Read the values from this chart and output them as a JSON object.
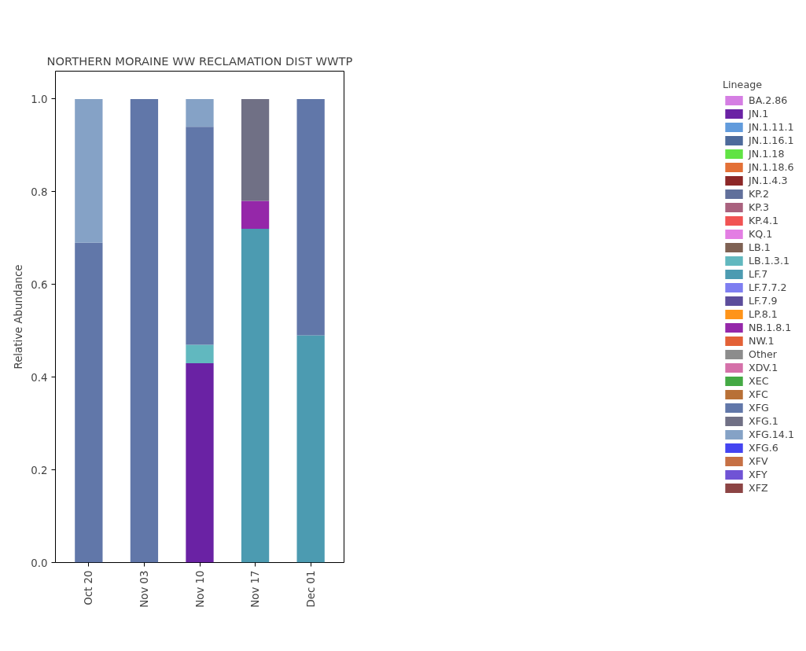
{
  "chart_data": {
    "type": "bar",
    "stacked": true,
    "title": "NORTHERN MORAINE WW RECLAMATION DIST WWTP",
    "ylabel": "Relative Abundance",
    "legend_title": "Lineage",
    "legend": "right",
    "grid": false,
    "categories": [
      "Oct 20",
      "Nov 03",
      "Nov 10",
      "Nov 17",
      "Dec 01"
    ],
    "ylim": [
      0,
      1.06
    ],
    "yticks": [
      {
        "value": 0,
        "label": "0.0"
      },
      {
        "value": 0.2,
        "label": "0.2"
      },
      {
        "value": 0.4,
        "label": "0.4"
      },
      {
        "value": 0.6,
        "label": "0.6"
      },
      {
        "value": 0.8,
        "label": "0.8"
      },
      {
        "value": 1.0,
        "label": "1.0"
      }
    ],
    "series": [
      {
        "name": "BA.2.86",
        "color": "#d070e0",
        "values": [
          0,
          0,
          0,
          0,
          0
        ]
      },
      {
        "name": "JN.1",
        "color": "#5a0a9a",
        "values": [
          0,
          0,
          0.43,
          0,
          0
        ]
      },
      {
        "name": "JN.1.11.1",
        "color": "#5090d8",
        "values": [
          0,
          0,
          0,
          0,
          0
        ]
      },
      {
        "name": "JN.1.16.1",
        "color": "#3a5a90",
        "values": [
          0,
          0,
          0,
          0,
          0
        ]
      },
      {
        "name": "JN.1.18",
        "color": "#50e030",
        "values": [
          0,
          0,
          0,
          0,
          0
        ]
      },
      {
        "name": "JN.1.18.6",
        "color": "#e06020",
        "values": [
          0,
          0,
          0,
          0,
          0
        ]
      },
      {
        "name": "JN.1.4.3",
        "color": "#801010",
        "values": [
          0,
          0,
          0,
          0,
          0
        ]
      },
      {
        "name": "KP.2",
        "color": "#506090",
        "values": [
          0,
          0,
          0,
          0,
          0
        ]
      },
      {
        "name": "KP.3",
        "color": "#a05070",
        "values": [
          0,
          0,
          0,
          0,
          0
        ]
      },
      {
        "name": "KP.4.1",
        "color": "#f04040",
        "values": [
          0,
          0,
          0,
          0,
          0
        ]
      },
      {
        "name": "KQ.1",
        "color": "#e070e0",
        "values": [
          0,
          0,
          0,
          0,
          0
        ]
      },
      {
        "name": "LB.1",
        "color": "#705040",
        "values": [
          0,
          0,
          0,
          0,
          0
        ]
      },
      {
        "name": "LB.1.3.1",
        "color": "#50b0b8",
        "values": [
          0,
          0,
          0.04,
          0,
          0
        ]
      },
      {
        "name": "LF.7",
        "color": "#3890a8",
        "values": [
          0,
          0,
          0,
          0.72,
          0.49
        ]
      },
      {
        "name": "LF.7.7.2",
        "color": "#7070f0",
        "values": [
          0,
          0,
          0,
          0,
          0
        ]
      },
      {
        "name": "LF.7.9",
        "color": "#4a3a90",
        "values": [
          0,
          0,
          0,
          0,
          0
        ]
      },
      {
        "name": "LP.8.1",
        "color": "#ff8800",
        "values": [
          0,
          0,
          0,
          0,
          0
        ]
      },
      {
        "name": "NB.1.8.1",
        "color": "#8a10a0",
        "values": [
          0,
          0,
          0,
          0.06,
          0
        ]
      },
      {
        "name": "NW.1",
        "color": "#e05020",
        "values": [
          0,
          0,
          0,
          0,
          0
        ]
      },
      {
        "name": "Other",
        "color": "#808080",
        "values": [
          0,
          0,
          0,
          0,
          0
        ]
      },
      {
        "name": "XDV.1",
        "color": "#d060a0",
        "values": [
          0,
          0,
          0,
          0,
          0
        ]
      },
      {
        "name": "XEC",
        "color": "#30a030",
        "values": [
          0,
          0,
          0,
          0,
          0
        ]
      },
      {
        "name": "XFC",
        "color": "#b06020",
        "values": [
          0,
          0,
          0,
          0,
          0
        ]
      },
      {
        "name": "XFG",
        "color": "#5068a0",
        "values": [
          0.69,
          1.0,
          0.47,
          0,
          0.51
        ]
      },
      {
        "name": "XFG.1",
        "color": "#606078",
        "values": [
          0,
          0,
          0,
          0.22,
          0
        ]
      },
      {
        "name": "XFG.14.1",
        "color": "#7898c0",
        "values": [
          0.31,
          0,
          0.06,
          0,
          0
        ]
      },
      {
        "name": "XFG.6",
        "color": "#3030f0",
        "values": [
          0,
          0,
          0,
          0,
          0
        ]
      },
      {
        "name": "XFV",
        "color": "#c06030",
        "values": [
          0,
          0,
          0,
          0,
          0
        ]
      },
      {
        "name": "XFY",
        "color": "#6040d0",
        "values": [
          0,
          0,
          0,
          0,
          0
        ]
      },
      {
        "name": "XFZ",
        "color": "#803030",
        "values": [
          0,
          0,
          0,
          0,
          0
        ]
      }
    ]
  }
}
